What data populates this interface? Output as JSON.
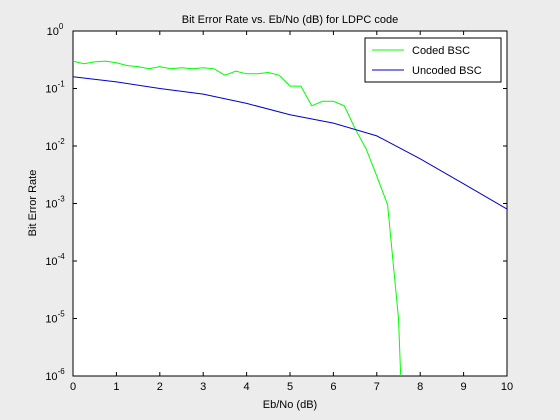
{
  "chart_data": {
    "type": "line",
    "title": "Bit Error Rate vs. Eb/No (dB) for LDPC code",
    "xlabel": "Eb/No (dB)",
    "ylabel": "Bit Error Rate",
    "xlim": [
      0,
      10
    ],
    "ylim": [
      1e-06,
      1
    ],
    "yscale": "log",
    "grid": false,
    "legend_position": "top-right",
    "x_ticks": [
      "0",
      "1",
      "2",
      "3",
      "4",
      "5",
      "6",
      "7",
      "8",
      "9",
      "10"
    ],
    "y_ticks": [
      {
        "base": "10",
        "exp": "-6",
        "value": 1e-06
      },
      {
        "base": "10",
        "exp": "-5",
        "value": 1e-05
      },
      {
        "base": "10",
        "exp": "-4",
        "value": 0.0001
      },
      {
        "base": "10",
        "exp": "-3",
        "value": 0.001
      },
      {
        "base": "10",
        "exp": "-2",
        "value": 0.01
      },
      {
        "base": "10",
        "exp": "-1",
        "value": 0.1
      },
      {
        "base": "10",
        "exp": "0",
        "value": 1
      }
    ],
    "series": [
      {
        "name": "Coded BSC",
        "color": "#00ff00",
        "x": [
          0,
          0.25,
          0.5,
          0.75,
          1.0,
          1.25,
          1.5,
          1.75,
          2.0,
          2.25,
          2.5,
          2.75,
          3.0,
          3.25,
          3.5,
          3.75,
          4.0,
          4.25,
          4.5,
          4.75,
          5.0,
          5.25,
          5.5,
          5.75,
          6.0,
          6.25,
          6.5,
          6.75,
          7.0,
          7.25,
          7.5,
          7.55
        ],
        "y": [
          0.3,
          0.27,
          0.29,
          0.3,
          0.28,
          0.25,
          0.24,
          0.22,
          0.24,
          0.22,
          0.23,
          0.22,
          0.23,
          0.22,
          0.17,
          0.2,
          0.18,
          0.18,
          0.19,
          0.17,
          0.11,
          0.11,
          0.05,
          0.06,
          0.06,
          0.05,
          0.02,
          0.009,
          0.003,
          0.00095,
          1e-05,
          1e-06
        ]
      },
      {
        "name": "Uncoded BSC",
        "color": "#0000cc",
        "x": [
          0,
          1,
          2,
          3,
          4,
          5,
          6,
          7,
          8,
          9,
          10
        ],
        "y": [
          0.16,
          0.13,
          0.1,
          0.08,
          0.055,
          0.035,
          0.025,
          0.015,
          0.006,
          0.0022,
          0.0008
        ]
      }
    ]
  }
}
